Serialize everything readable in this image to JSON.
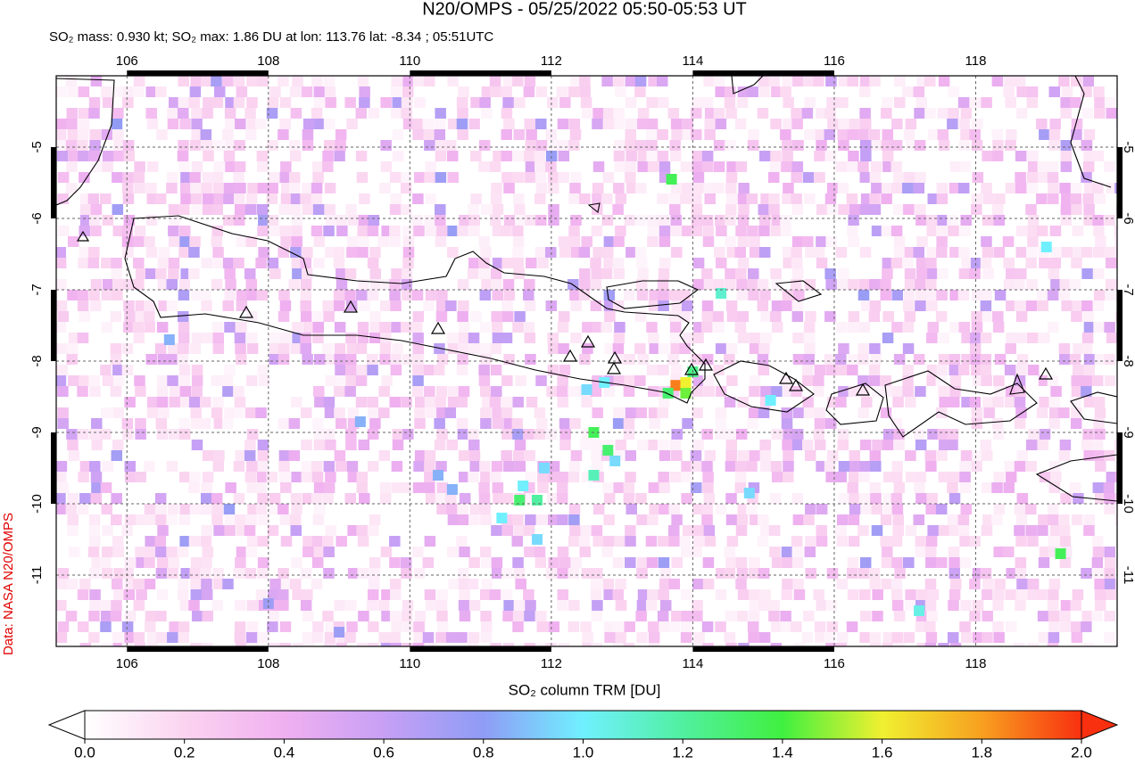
{
  "title": "N20/OMPS - 05/25/2022 05:50-05:53 UT",
  "subtitle": "SO₂ mass: 0.930 kt; SO₂ max: 1.86 DU at lon: 113.76 lat: -8.34 ; 05:51UTC",
  "credit": "Data: NASA N20/OMPS",
  "map": {
    "xlim": [
      105,
      120
    ],
    "ylim": [
      -12,
      -4
    ],
    "xticks": [
      106,
      108,
      110,
      112,
      114,
      116,
      118
    ],
    "yticks": [
      -5,
      -6,
      -7,
      -8,
      -9,
      -10,
      -11
    ],
    "cells": [
      [
        113.76,
        -8.34,
        1.86
      ],
      [
        113.9,
        -8.3,
        1.6
      ],
      [
        113.9,
        -8.45,
        1.45
      ],
      [
        113.65,
        -8.45,
        1.3
      ],
      [
        114.0,
        -8.15,
        1.25
      ],
      [
        112.6,
        -9.0,
        1.35
      ],
      [
        112.8,
        -9.25,
        1.3
      ],
      [
        112.6,
        -9.6,
        1.15
      ],
      [
        111.55,
        -9.95,
        1.3
      ],
      [
        111.8,
        -9.95,
        1.2
      ],
      [
        113.7,
        -5.45,
        1.35
      ],
      [
        119.2,
        -10.7,
        1.35
      ],
      [
        117.2,
        -11.5,
        1.05
      ],
      [
        112.75,
        -8.3,
        1.0
      ],
      [
        112.5,
        -8.4,
        0.95
      ],
      [
        111.3,
        -10.2,
        1.0
      ],
      [
        111.8,
        -10.5,
        0.95
      ],
      [
        110.4,
        -9.6,
        0.85
      ],
      [
        110.6,
        -9.8,
        0.85
      ],
      [
        109.0,
        -11.8,
        0.75
      ],
      [
        114.4,
        -7.05,
        1.1
      ],
      [
        119.0,
        -6.4,
        1.0
      ],
      [
        115.1,
        -8.55,
        1.0
      ],
      [
        114.8,
        -9.85,
        0.95
      ],
      [
        109.3,
        -8.85,
        0.85
      ],
      [
        106.6,
        -7.7,
        0.85
      ],
      [
        108.0,
        -11.4,
        0.75
      ],
      [
        112.9,
        -9.4,
        0.95
      ],
      [
        111.6,
        -9.75,
        1.0
      ],
      [
        111.9,
        -9.5,
        0.95
      ]
    ]
  },
  "colorbar": {
    "title": "SO₂ column TRM [DU]",
    "lim": [
      0,
      2
    ],
    "ticks": [
      {
        "value": 0,
        "label": "0.0"
      },
      {
        "value": 0.2,
        "label": "0.2"
      },
      {
        "value": 0.4,
        "label": "0.4"
      },
      {
        "value": 0.6,
        "label": "0.6"
      },
      {
        "value": 0.8,
        "label": "0.8"
      },
      {
        "value": 1,
        "label": "1.0"
      },
      {
        "value": 1.2,
        "label": "1.2"
      },
      {
        "value": 1.4,
        "label": "1.4"
      },
      {
        "value": 1.6,
        "label": "1.6"
      },
      {
        "value": 1.8,
        "label": "1.8"
      },
      {
        "value": 2,
        "label": "2.0"
      }
    ]
  }
}
